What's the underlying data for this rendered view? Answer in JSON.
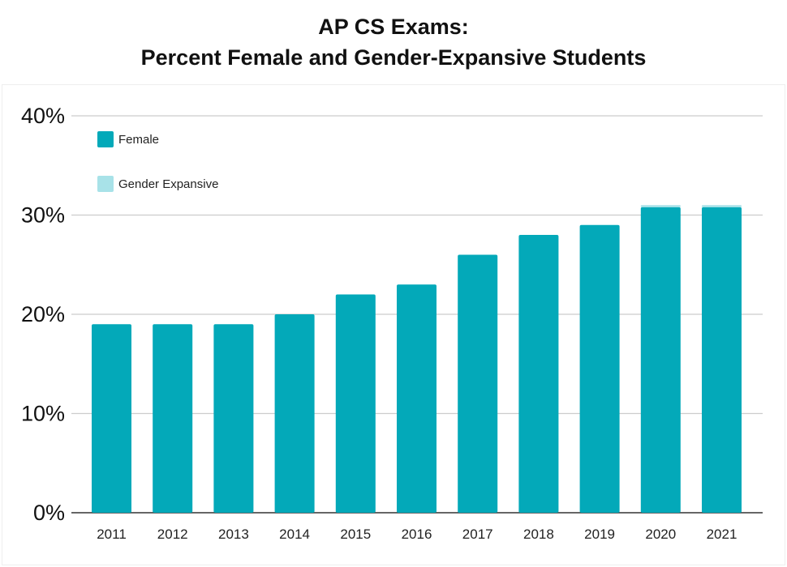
{
  "chart_data": {
    "type": "bar",
    "stacked": true,
    "title": "AP CS Exams:",
    "subtitle": "Percent Female and Gender-Expansive Students",
    "xlabel": "",
    "ylabel": "",
    "ylim": [
      0,
      40
    ],
    "yticks": [
      "0%",
      "10%",
      "20%",
      "30%",
      "40%"
    ],
    "ytick_values": [
      0,
      10,
      20,
      30,
      40
    ],
    "grid": true,
    "legend_position": "top-left",
    "categories": [
      "2011",
      "2012",
      "2013",
      "2014",
      "2015",
      "2016",
      "2017",
      "2018",
      "2019",
      "2020",
      "2021"
    ],
    "series": [
      {
        "name": "Female",
        "color": "#03a9b9",
        "values": [
          19,
          19,
          19,
          20,
          22,
          23,
          26,
          28,
          29,
          30.8,
          30.8
        ]
      },
      {
        "name": "Gender Expansive",
        "color": "#a8e2e8",
        "values": [
          0,
          0,
          0,
          0,
          0,
          0,
          0,
          0,
          0,
          0.2,
          0.2
        ]
      }
    ]
  }
}
